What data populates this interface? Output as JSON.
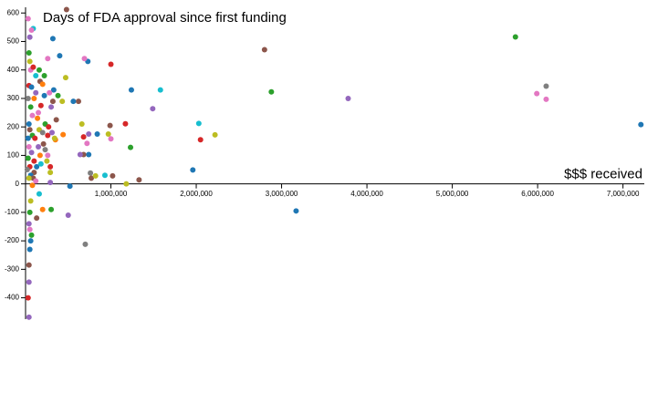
{
  "chart_data": {
    "type": "scatter",
    "title": "Days of FDA approval since first funding",
    "x_label": "$$$ received",
    "x": [
      7210000,
      5740000,
      6100000,
      5990000,
      6100000,
      3780000,
      2800000,
      2880000,
      3170000,
      2030000,
      2050000,
      2220000,
      1960000,
      1490000,
      1580000,
      1240000,
      1230000,
      1330000,
      1180000,
      1170000,
      1000000,
      990000,
      970000,
      1000000,
      930000,
      1020000,
      840000,
      760000,
      770000,
      820000,
      740000,
      720000,
      740000,
      700000,
      730000,
      690000,
      620000,
      660000,
      680000,
      680000,
      640000,
      560000,
      520000,
      500000,
      480000,
      470000,
      430000,
      440000,
      400000,
      380000,
      330000,
      320000,
      300000,
      290000,
      290000,
      350000,
      360000,
      260000,
      250000,
      230000,
      200000,
      160000,
      130000,
      100000,
      80000,
      70000,
      60000,
      50000,
      40000,
      40000,
      30000,
      40000,
      50000,
      40000,
      50000,
      60000,
      30000,
      90000,
      70000,
      50000,
      40000,
      50000,
      60000,
      90000,
      160000,
      170000,
      220000,
      260000,
      40000,
      70000,
      120000,
      100000,
      30000,
      60000,
      80000,
      140000,
      180000,
      220000,
      280000,
      300000,
      320000,
      40000,
      50000,
      80000,
      110000,
      160000,
      200000,
      230000,
      270000,
      310000,
      340000,
      30000,
      40000,
      70000,
      100000,
      130000,
      170000,
      180000,
      30000,
      50000,
      60000,
      90000,
      120000,
      40000,
      20000,
      150000,
      210000,
      260000,
      290000,
      120000,
      200000,
      150000
    ],
    "values": [
      208,
      516,
      343,
      317,
      297,
      300,
      471,
      323,
      -95,
      212,
      155,
      172,
      49,
      264,
      330,
      330,
      128,
      14,
      0,
      211,
      420,
      205,
      175,
      158,
      30,
      28,
      175,
      38,
      20,
      28,
      103,
      142,
      175,
      -212,
      430,
      440,
      290,
      210,
      165,
      103,
      103,
      290,
      -8,
      -110,
      612,
      373,
      290,
      173,
      450,
      310,
      330,
      510,
      -90,
      5,
      40,
      155,
      225,
      170,
      80,
      120,
      -90,
      -35,
      -120,
      40,
      -5,
      -180,
      -200,
      -230,
      -285,
      -345,
      -400,
      -468,
      -160,
      -140,
      -100,
      -60,
      580,
      545,
      540,
      515,
      460,
      430,
      400,
      410,
      400,
      360,
      380,
      440,
      345,
      340,
      320,
      300,
      300,
      270,
      240,
      230,
      275,
      310,
      320,
      270,
      290,
      210,
      190,
      170,
      160,
      190,
      180,
      210,
      200,
      180,
      160,
      160,
      130,
      110,
      80,
      60,
      100,
      70,
      90,
      60,
      30,
      20,
      10,
      20,
      50,
      130,
      140,
      100,
      60,
      380,
      350,
      250
    ],
    "colors": [
      "#1f77b4",
      "#2ca02c",
      "#7f7f7f",
      "#e377c2",
      "#e377c2",
      "#9467bd",
      "#8c564b",
      "#2ca02c",
      "#1f77b4",
      "#17becf",
      "#d62728",
      "#bcbd22",
      "#1f77b4",
      "#9467bd",
      "#17becf",
      "#1f77b4",
      "#2ca02c",
      "#8c564b",
      "#bcbd22",
      "#d62728",
      "#d62728",
      "#8c564b",
      "#bcbd22",
      "#e377c2",
      "#17becf",
      "#8c564b",
      "#1f77b4",
      "#7f7f7f",
      "#8c564b",
      "#bcbd22",
      "#1f77b4",
      "#e377c2",
      "#9467bd",
      "#7f7f7f",
      "#1f77b4",
      "#e377c2",
      "#8c564b",
      "#bcbd22",
      "#d62728",
      "#8c564b",
      "#9467bd",
      "#1f77b4",
      "#1f77b4",
      "#9467bd",
      "#8c564b",
      "#bcbd22",
      "#bcbd22",
      "#ff7f0e",
      "#1f77b4",
      "#2ca02c",
      "#1f77b4",
      "#1f77b4",
      "#2ca02c",
      "#9467bd",
      "#bcbd22",
      "#ff7f0e",
      "#8c564b",
      "#d62728",
      "#bcbd22",
      "#7f7f7f",
      "#ff7f0e",
      "#17becf",
      "#8c564b",
      "#8c564b",
      "#ff7f0e",
      "#2ca02c",
      "#1f77b4",
      "#1f77b4",
      "#8c564b",
      "#9467bd",
      "#d62728",
      "#9467bd",
      "#e377c2",
      "#9467bd",
      "#2ca02c",
      "#bcbd22",
      "#e377c2",
      "#17becf",
      "#e377c2",
      "#9467bd",
      "#2ca02c",
      "#bcbd22",
      "#e377c2",
      "#d62728",
      "#2ca02c",
      "#8c564b",
      "#2ca02c",
      "#e377c2",
      "#d62728",
      "#1f77b4",
      "#9467bd",
      "#ff7f0e",
      "#7f7f7f",
      "#2ca02c",
      "#e377c2",
      "#ff7f0e",
      "#d62728",
      "#1f77b4",
      "#e377c2",
      "#9467bd",
      "#8c564b",
      "#1f77b4",
      "#8c564b",
      "#2ca02c",
      "#d62728",
      "#bcbd22",
      "#7f7f7f",
      "#2ca02c",
      "#d62728",
      "#9467bd",
      "#bcbd22",
      "#1f77b4",
      "#e377c2",
      "#9467bd",
      "#d62728",
      "#1f77b4",
      "#ff7f0e",
      "#17becf",
      "#2ca02c",
      "#d62728",
      "#1f77b4",
      "#8c564b",
      "#e377c2",
      "#bcbd22",
      "#7f7f7f",
      "#9467bd",
      "#8c564b",
      "#e377c2",
      "#d62728",
      "#17becf",
      "#ff7f0e",
      "#e377c2"
    ],
    "xlim": [
      0,
      7250000
    ],
    "ylim": [
      -475,
      620
    ],
    "xticks": [
      {
        "value": 1000000,
        "label": "1,000,000"
      },
      {
        "value": 2000000,
        "label": "2,000,000"
      },
      {
        "value": 3000000,
        "label": "3,000,000"
      },
      {
        "value": 4000000,
        "label": "4,000,000"
      },
      {
        "value": 5000000,
        "label": "5,000,000"
      },
      {
        "value": 6000000,
        "label": "6,000,000"
      },
      {
        "value": 7000000,
        "label": "7,000,000"
      }
    ],
    "yticks": [
      -400,
      -300,
      -200,
      -100,
      0,
      100,
      200,
      300,
      400,
      500,
      600
    ]
  }
}
